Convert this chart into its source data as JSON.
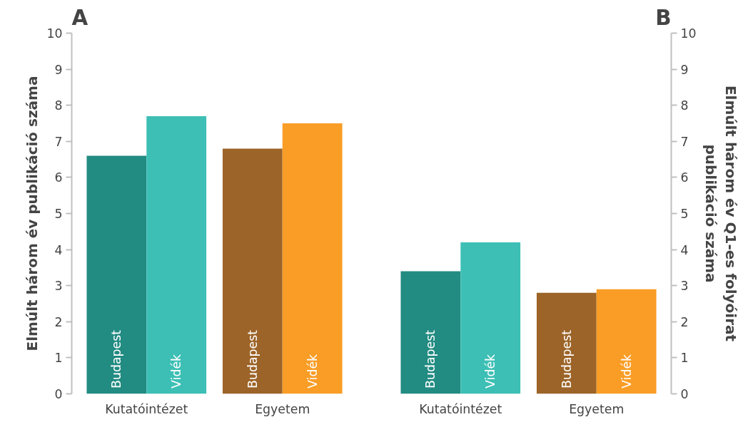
{
  "chart_data": [
    {
      "type": "bar",
      "title": "A",
      "ylabel": "Elmúlt három év publikáció száma",
      "categories": [
        "Kutatóintézet",
        "Egyetem"
      ],
      "series": [
        {
          "name": "Budapest",
          "colors": [
            "#228b82",
            "#9c6428"
          ],
          "values": [
            6.6,
            6.8
          ]
        },
        {
          "name": "Vidék",
          "colors": [
            "#3dbfb5",
            "#f99d26"
          ],
          "values": [
            7.7,
            7.5
          ]
        }
      ],
      "ylim": [
        0,
        10
      ],
      "yticks": [
        0,
        1,
        2,
        3,
        4,
        5,
        6,
        7,
        8,
        9,
        10
      ],
      "grid": false,
      "legend": false
    },
    {
      "type": "bar",
      "title": "B",
      "y2label": "Elmúlt három év Q1-es folyóirat\npublikáció száma",
      "categories": [
        "Kutatóintézet",
        "Egyetem"
      ],
      "series": [
        {
          "name": "Budapest",
          "colors": [
            "#228b82",
            "#9c6428"
          ],
          "values": [
            3.4,
            2.8
          ],
          "axis": "y2"
        },
        {
          "name": "Vidék",
          "colors": [
            "#3dbfb5",
            "#f99d26"
          ],
          "values": [
            4.2,
            2.9
          ],
          "axis": "y2"
        }
      ],
      "y2lim": [
        0,
        10
      ],
      "y2ticks": [
        0,
        1,
        2,
        3,
        4,
        5,
        6,
        7,
        8,
        9,
        10
      ],
      "grid": false,
      "legend": false
    }
  ]
}
